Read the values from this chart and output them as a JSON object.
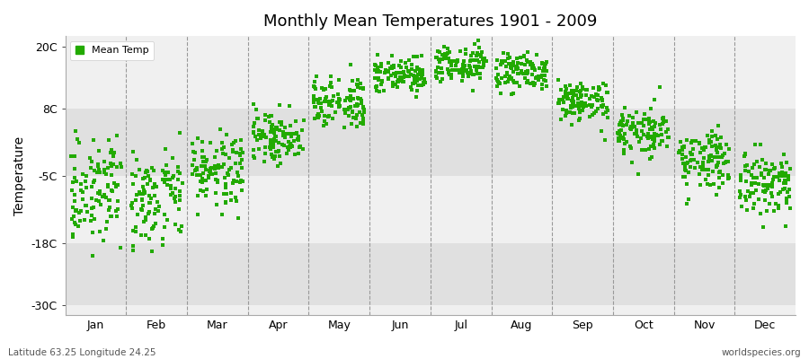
{
  "title": "Monthly Mean Temperatures 1901 - 2009",
  "ylabel": "Temperature",
  "footer_left": "Latitude 63.25 Longitude 24.25",
  "footer_right": "worldspecies.org",
  "legend_label": "Mean Temp",
  "dot_color": "#22AA00",
  "bg_color_light": "#F0F0F0",
  "bg_color_dark": "#E0E0E0",
  "figure_color": "#FFFFFF",
  "yticks": [
    -30,
    -18,
    -5,
    8,
    20
  ],
  "ytick_labels": [
    "-30C",
    "-18C",
    "-5C",
    "8C",
    "20C"
  ],
  "ylim": [
    -32,
    22
  ],
  "xlim": [
    0,
    12
  ],
  "num_years": 109,
  "monthly_means": [
    -8.0,
    -8.5,
    -4.0,
    2.5,
    9.5,
    14.5,
    16.5,
    15.0,
    9.5,
    3.5,
    -2.0,
    -6.5
  ],
  "monthly_stds": [
    4.5,
    5.0,
    3.5,
    2.5,
    2.5,
    2.0,
    1.8,
    2.0,
    2.0,
    2.5,
    3.0,
    3.5
  ],
  "month_names": [
    "Jan",
    "Feb",
    "Mar",
    "Apr",
    "May",
    "Jun",
    "Jul",
    "Aug",
    "Sep",
    "Oct",
    "Nov",
    "Dec"
  ],
  "month_positions": [
    0.5,
    1.5,
    2.5,
    3.5,
    4.5,
    5.5,
    6.5,
    7.5,
    8.5,
    9.5,
    10.5,
    11.5
  ],
  "divider_positions": [
    1,
    2,
    3,
    4,
    5,
    6,
    7,
    8,
    9,
    10,
    11
  ],
  "marker_size": 12,
  "jitter_scale": 0.42,
  "seed": 123
}
